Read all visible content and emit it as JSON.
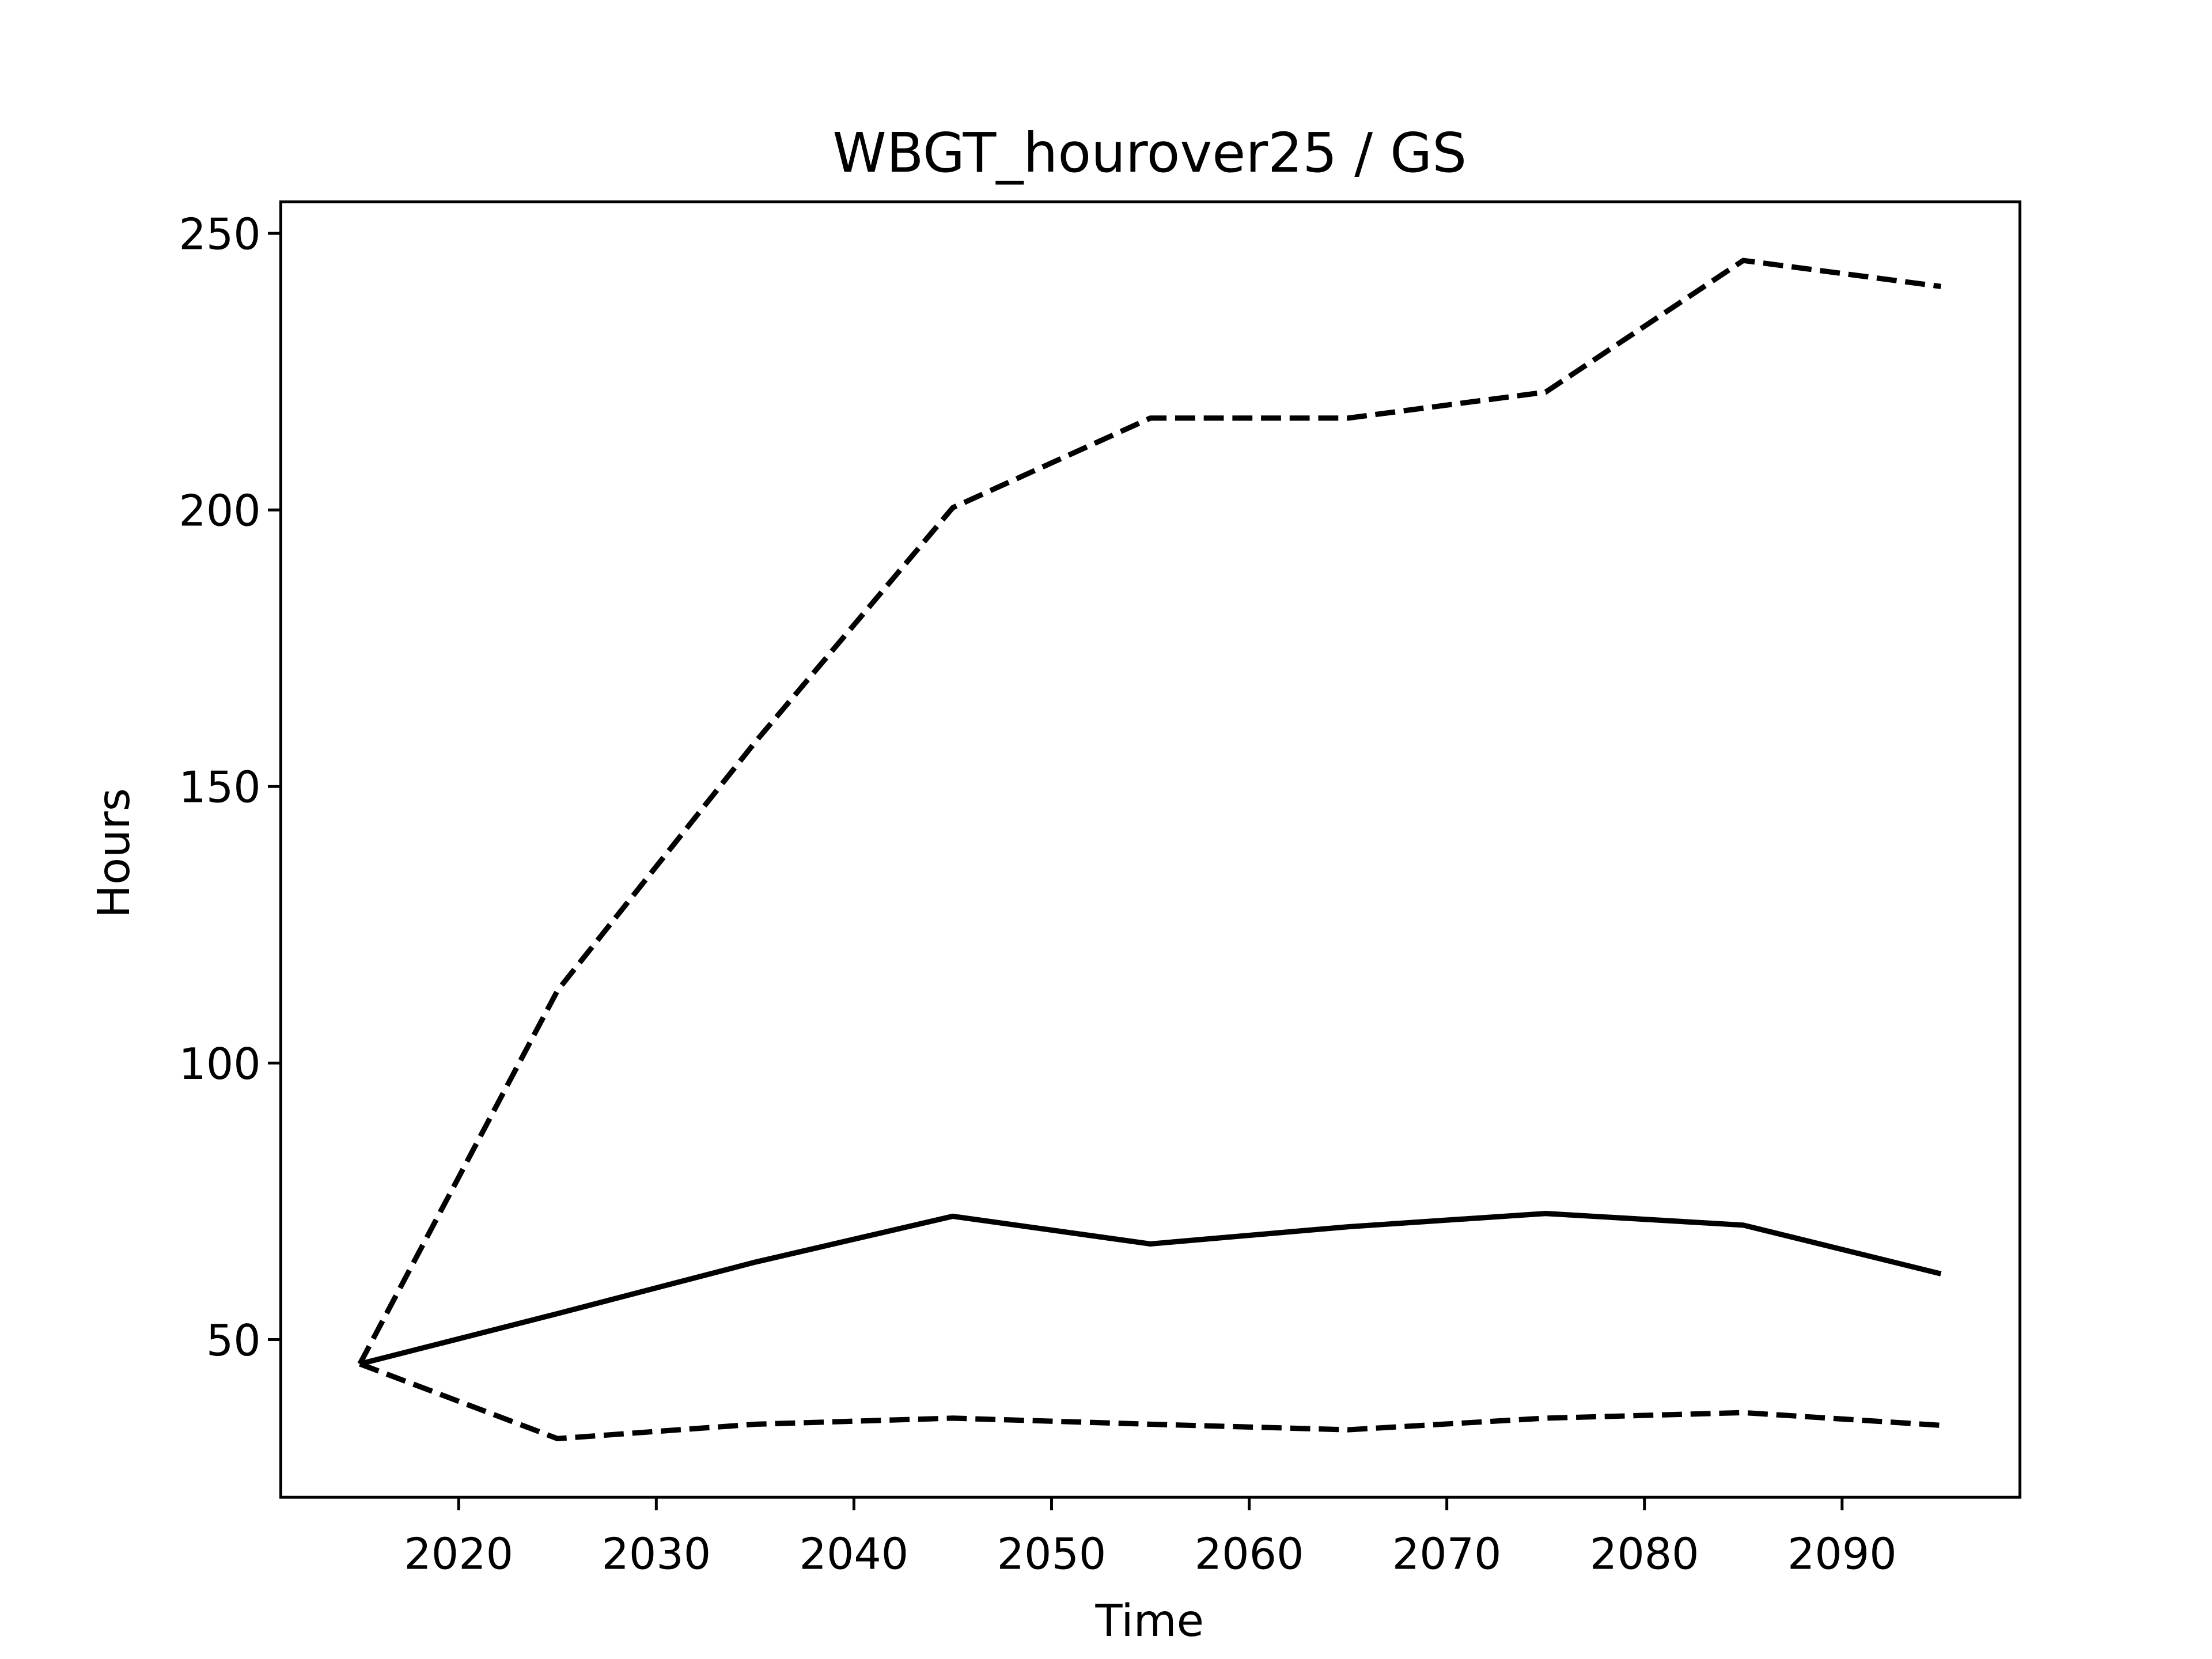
{
  "chart_data": {
    "type": "line",
    "title": "WBGT_hourover25 / GS",
    "xlabel": "Time",
    "ylabel": "Hours",
    "x": [
      2015,
      2025,
      2035,
      2045,
      2055,
      2065,
      2075,
      2085,
      2095
    ],
    "series": [
      {
        "color": "#000000",
        "linestyle": "solid",
        "values": [
          45.6,
          54.7,
          64,
          72.3,
          67.3,
          70.4,
          72.8,
          70.7,
          61.9
        ]
      },
      {
        "color": "#000000",
        "linestyle": "dashed",
        "values": [
          45.6,
          113.1,
          158,
          200.4,
          216.6,
          216.6,
          221.3,
          245.1,
          240.4
        ]
      },
      {
        "color": "#000000",
        "linestyle": "dashed",
        "values": [
          45.6,
          32.1,
          34.7,
          35.8,
          34.7,
          33.7,
          35.8,
          36.8,
          34.5
        ]
      }
    ],
    "xlim": [
      2011,
      2099
    ],
    "xticks": [
      2020,
      2030,
      2040,
      2050,
      2060,
      2070,
      2080,
      2090
    ],
    "ylim": [
      21.5,
      255.7
    ],
    "yticks": [
      50,
      100,
      150,
      200,
      250
    ],
    "grid": false
  }
}
